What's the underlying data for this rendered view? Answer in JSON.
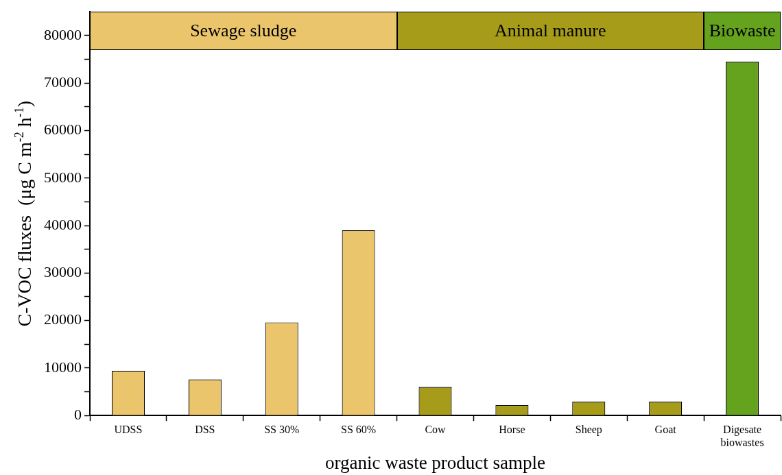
{
  "chart_data": {
    "type": "bar",
    "xlabel": "organic waste product sample",
    "ylabel": "C-VOC fluxes  (μg C m$^{-2}$ h$^{-1}$)",
    "categories": [
      "UDSS",
      "DSS",
      "SS 30%",
      "SS 60%",
      "Cow",
      "Horse",
      "Sheep",
      "Goat",
      "Digesate\nbiowastes"
    ],
    "values": [
      9400,
      7600,
      19600,
      39000,
      6000,
      2200,
      2900,
      2900,
      74500
    ],
    "colors": [
      "#ebc56b",
      "#ebc56b",
      "#ebc56b",
      "#ebc56b",
      "#a69c1a",
      "#a69c1a",
      "#a69c1a",
      "#a69c1a",
      "#65a21e"
    ],
    "ylim": [
      0,
      85000
    ],
    "yticks": [
      0,
      {
        "value": 5000,
        "label": null
      },
      10000,
      {
        "value": 15000,
        "label": null
      },
      20000,
      {
        "value": 25000,
        "label": null
      },
      30000,
      {
        "value": 35000,
        "label": null
      },
      40000,
      {
        "value": 45000,
        "label": null
      },
      50000,
      {
        "value": 55000,
        "label": null
      },
      60000,
      {
        "value": 65000,
        "label": null
      },
      70000,
      {
        "value": 75000,
        "label": null
      },
      80000
    ],
    "annotations": [
      "Sewage sludge",
      "Animal manure",
      "Biowaste"
    ],
    "grid": false,
    "legend": false
  }
}
